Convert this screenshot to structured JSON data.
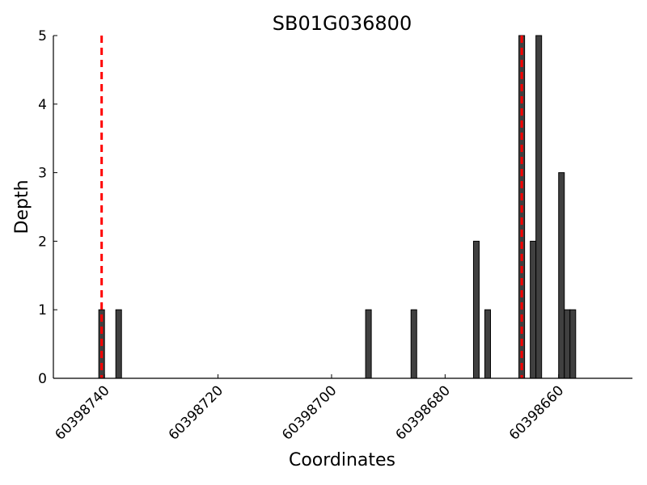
{
  "chart_data": {
    "type": "bar",
    "title": "SB01G036800",
    "xlabel": "Coordinates",
    "ylabel": "Depth",
    "xlim": [
      60398749,
      60398647
    ],
    "x_reversed": true,
    "ylim": [
      0,
      5
    ],
    "grid": false,
    "bar_color": "#404040",
    "bar_edge_color": "#000000",
    "marker_color": "#ff0000",
    "y_ticks": [
      0,
      1,
      2,
      3,
      4,
      5
    ],
    "x_ticks": [
      60398740,
      60398720,
      60398700,
      60398680,
      60398660
    ],
    "x_tick_labels": [
      "60398740",
      "60398720",
      "60398700",
      "60398680",
      "60398660"
    ],
    "bars": [
      {
        "x": 60398740.5,
        "value": 1
      },
      {
        "x": 60398737.5,
        "value": 1
      },
      {
        "x": 60398693.5,
        "value": 1
      },
      {
        "x": 60398685.5,
        "value": 1
      },
      {
        "x": 60398674.5,
        "value": 2
      },
      {
        "x": 60398672.5,
        "value": 1
      },
      {
        "x": 60398666.5,
        "value": 5
      },
      {
        "x": 60398664.5,
        "value": 2
      },
      {
        "x": 60398663.5,
        "value": 5
      },
      {
        "x": 60398659.5,
        "value": 3
      },
      {
        "x": 60398658.5,
        "value": 1
      },
      {
        "x": 60398657.5,
        "value": 1
      }
    ],
    "markers": [
      {
        "x": 60398740.5
      },
      {
        "x": 60398666.5
      }
    ]
  }
}
